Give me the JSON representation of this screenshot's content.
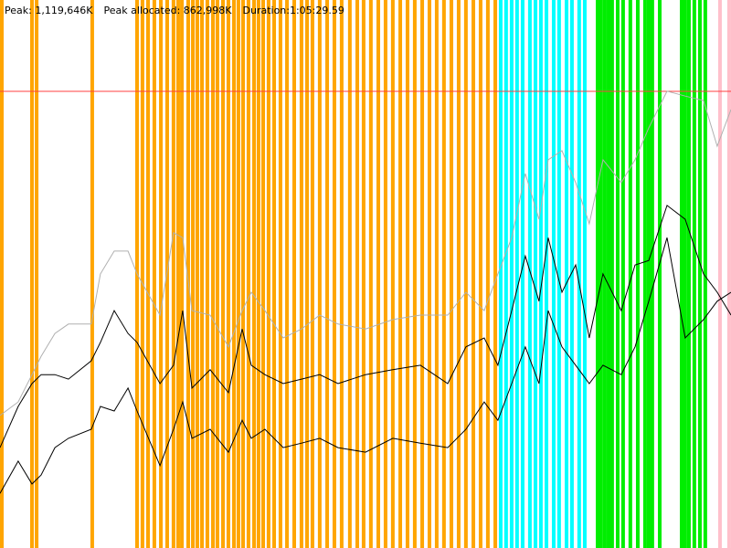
{
  "chart_data": {
    "type": "line",
    "stats": [
      "Peak: 1,119,646K",
      "Peak allocated: 862,998K",
      "Duration:1:05:29.59"
    ],
    "xlim": [
      0,
      3930
    ],
    "ylim": [
      0,
      1343575
    ],
    "threshold": 1119646,
    "threshold_color": "#ff4040",
    "x": [
      0,
      98,
      172,
      221,
      295,
      368,
      491,
      540,
      614,
      688,
      737,
      860,
      933,
      982,
      1032,
      1130,
      1228,
      1302,
      1351,
      1424,
      1523,
      1621,
      1719,
      1817,
      1965,
      2112,
      2260,
      2407,
      2505,
      2603,
      2677,
      2751,
      2824,
      2898,
      2947,
      3021,
      3095,
      3168,
      3242,
      3340,
      3414,
      3488,
      3586,
      3684,
      3782,
      3856,
      3930
    ],
    "series": [
      {
        "color": "#b0b0b0",
        "values": [
          325000,
          358000,
          425000,
          470000,
          526000,
          549000,
          549000,
          672000,
          728000,
          728000,
          672000,
          571000,
          773000,
          761000,
          582000,
          571000,
          493000,
          582000,
          627000,
          582000,
          515000,
          537000,
          571000,
          549000,
          537000,
          560000,
          571000,
          571000,
          627000,
          582000,
          672000,
          761000,
          918000,
          806000,
          952000,
          974000,
          896000,
          795000,
          952000,
          896000,
          952000,
          1030000,
          1120000,
          1108000,
          1097000,
          985000,
          1075000
        ]
      },
      {
        "color": "#000000",
        "values": [
          246000,
          347000,
          403000,
          425000,
          425000,
          414000,
          459000,
          504000,
          582000,
          526000,
          504000,
          403000,
          448000,
          582000,
          392000,
          437000,
          381000,
          537000,
          448000,
          425000,
          403000,
          414000,
          425000,
          403000,
          425000,
          437000,
          448000,
          403000,
          493000,
          515000,
          448000,
          582000,
          716000,
          605000,
          761000,
          627000,
          694000,
          515000,
          672000,
          582000,
          694000,
          705000,
          840000,
          806000,
          672000,
          627000,
          571000
        ]
      },
      {
        "color": "#000000",
        "values": [
          134000,
          213000,
          157000,
          179000,
          246000,
          269000,
          291000,
          347000,
          336000,
          392000,
          336000,
          202000,
          291000,
          358000,
          269000,
          291000,
          235000,
          313000,
          269000,
          291000,
          246000,
          257000,
          269000,
          246000,
          235000,
          269000,
          257000,
          246000,
          291000,
          358000,
          313000,
          403000,
          493000,
          403000,
          582000,
          493000,
          448000,
          403000,
          448000,
          425000,
          493000,
          605000,
          761000,
          515000,
          560000,
          605000,
          627000
        ]
      }
    ],
    "events": [
      {
        "color": "#ffa500",
        "x": [
          0,
          162,
          187,
          486,
          727,
          756,
          786,
          820,
          855,
          889,
          923,
          948,
          968,
          1002,
          1027,
          1051,
          1076,
          1105,
          1135,
          1159,
          1189,
          1218,
          1248,
          1272,
          1297,
          1326,
          1356,
          1380,
          1405,
          1434,
          1464,
          1498,
          1533,
          1572,
          1611,
          1641,
          1670,
          1709,
          1749,
          1788,
          1827,
          1871,
          1911,
          1945,
          1984,
          2024,
          2063,
          2102,
          2142,
          2181,
          2220,
          2260,
          2299,
          2338,
          2377,
          2417,
          2456,
          2495,
          2535,
          2574,
          2613,
          2653
        ]
      },
      {
        "color": "#00ffff",
        "x": [
          2682,
          2711,
          2741,
          2770,
          2800,
          2839,
          2869,
          2898,
          2928,
          2967,
          2996,
          3036,
          3065,
          3104,
          3134
        ]
      },
      {
        "color": "#00ee00",
        "x": [
          3203,
          3222,
          3242,
          3262,
          3281,
          3311,
          3340,
          3379,
          3419,
          3458,
          3478,
          3497,
          3537,
          3655,
          3674,
          3694,
          3723,
          3753,
          3782
        ]
      },
      {
        "color": "#ffc0cb",
        "x": [
          3861,
          3910
        ]
      }
    ]
  }
}
